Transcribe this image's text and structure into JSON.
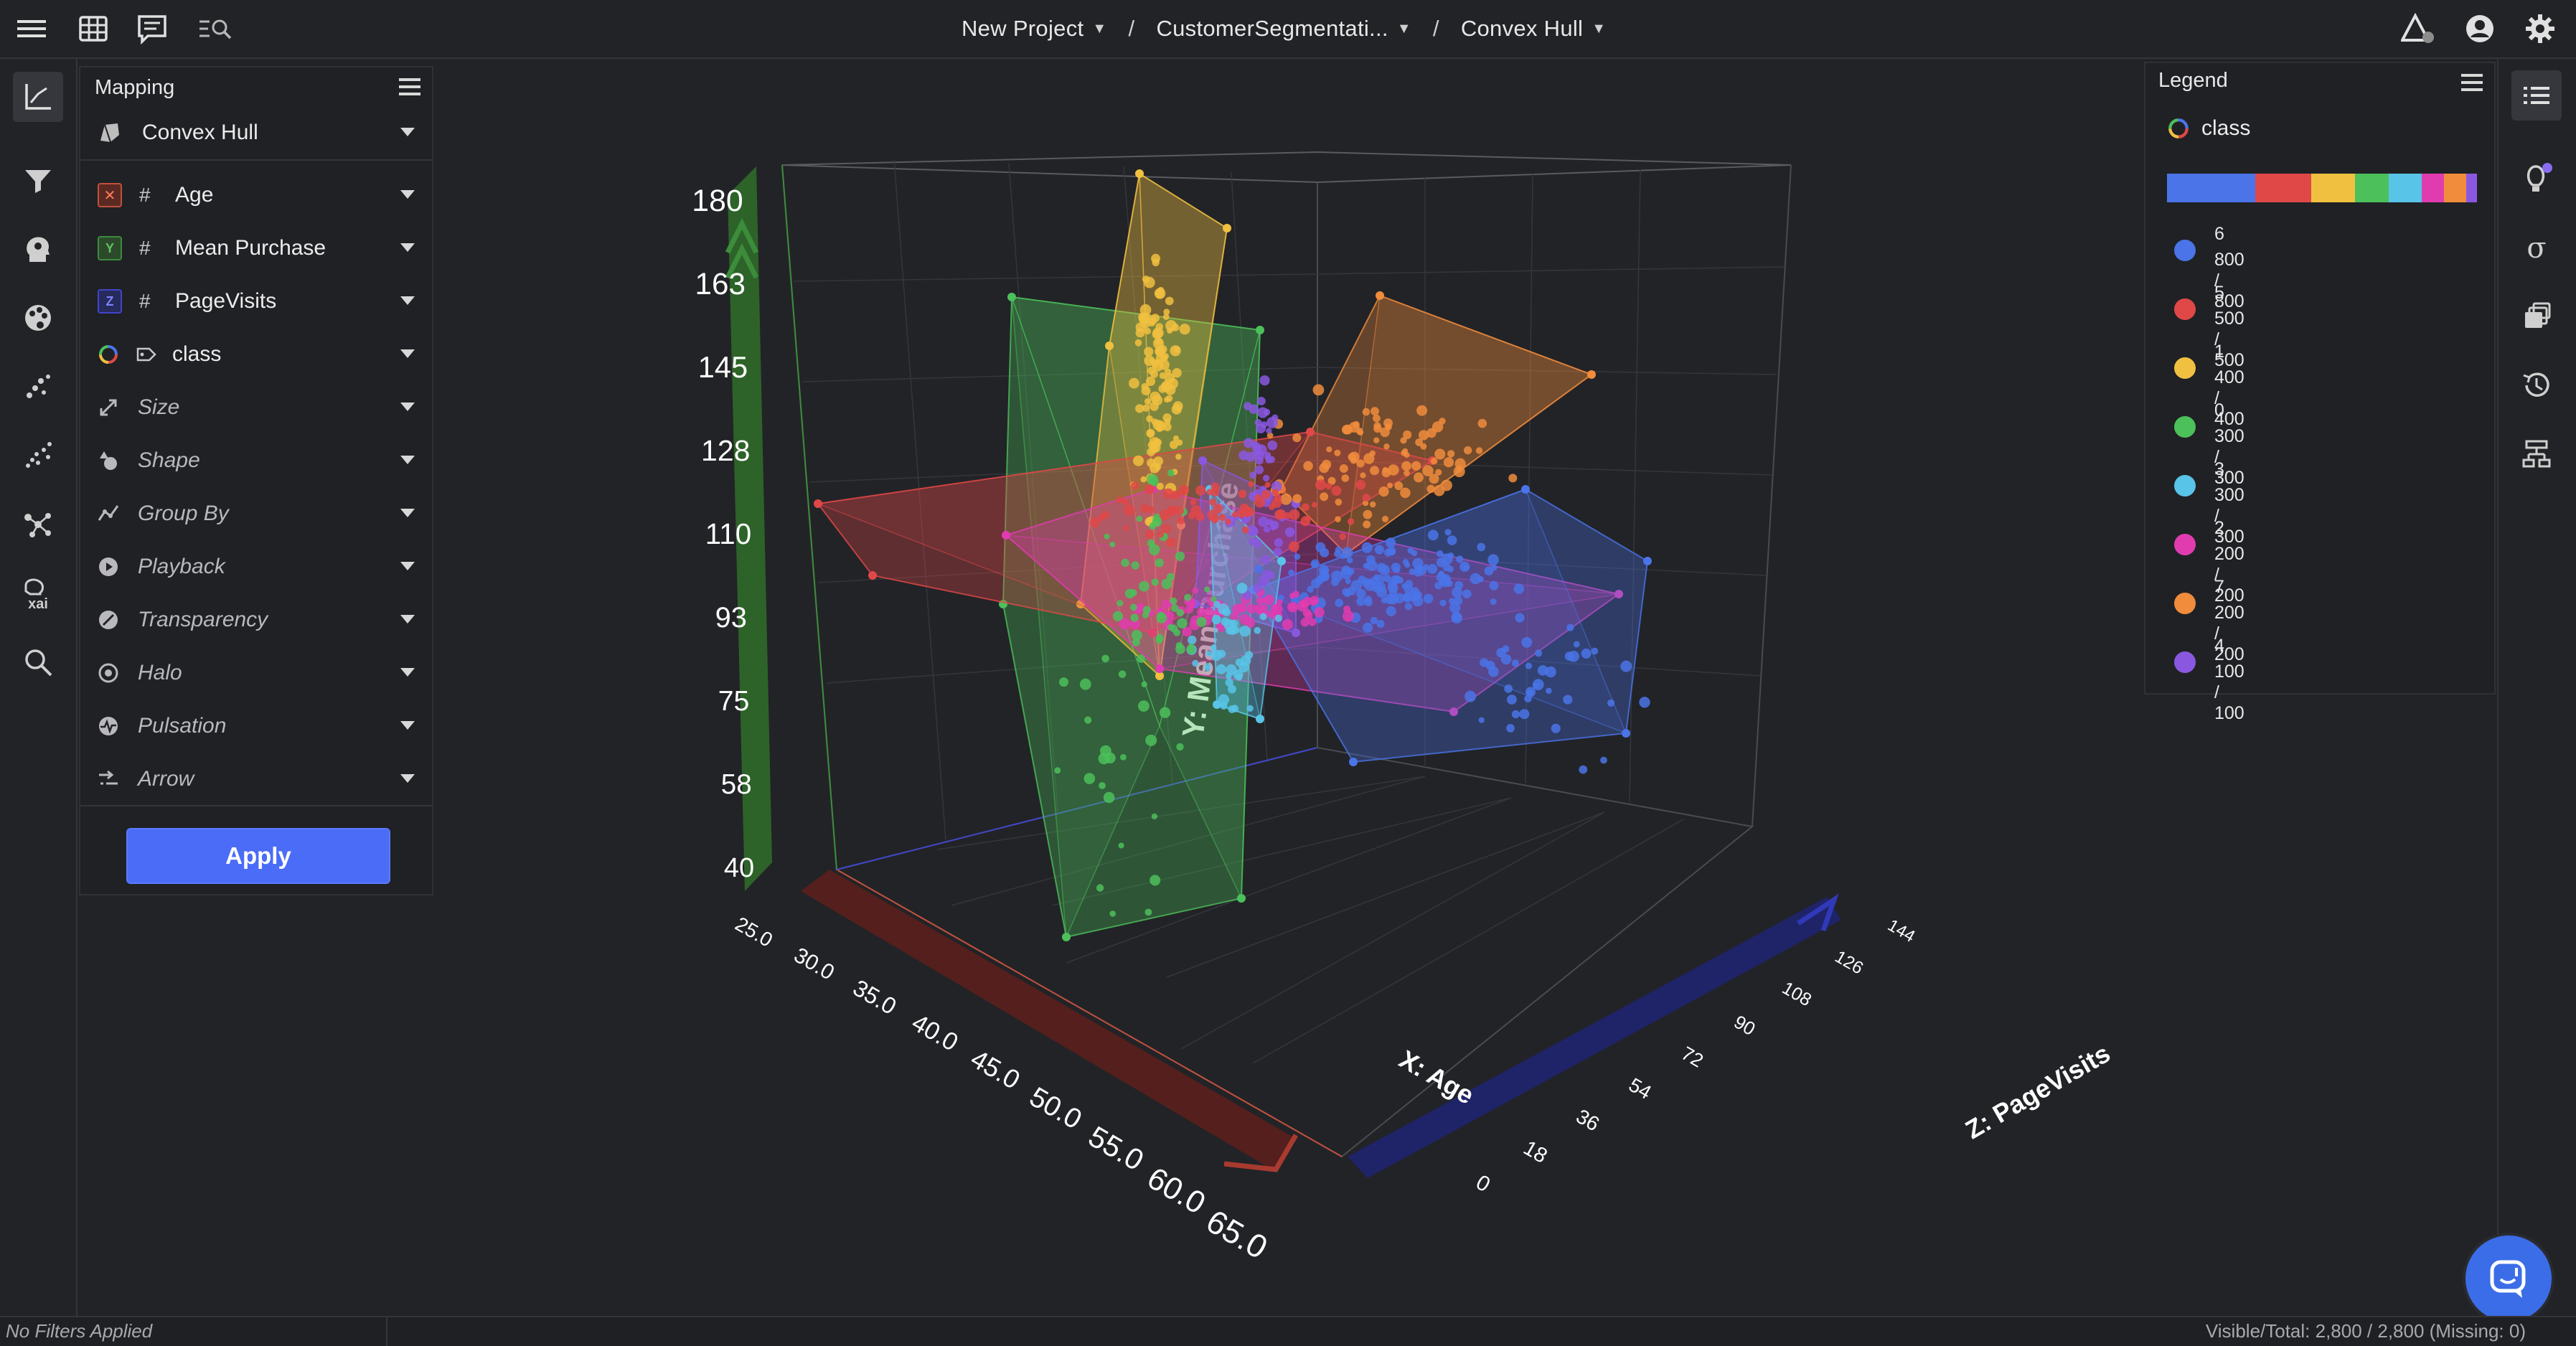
{
  "header": {
    "breadcrumb": [
      {
        "label": "New Project"
      },
      {
        "label": "CustomerSegmentati..."
      },
      {
        "label": "Convex Hull"
      }
    ],
    "separator": "/"
  },
  "mapping": {
    "title": "Mapping",
    "plot_type": "Convex Hull",
    "axes": [
      {
        "axis": "X",
        "field": "Age",
        "type_symbol": "#",
        "color": "#c0503c"
      },
      {
        "axis": "Y",
        "field": "Mean Purchase",
        "type_symbol": "#",
        "color": "#3c8c3c"
      },
      {
        "axis": "Z",
        "field": "PageVisits",
        "type_symbol": "#",
        "color": "#4046c8"
      }
    ],
    "color_field": "class",
    "options": [
      "Size",
      "Shape",
      "Group By",
      "Playback",
      "Transparency",
      "Halo",
      "Pulsation",
      "Arrow"
    ],
    "apply_label": "Apply"
  },
  "legend": {
    "title": "Legend",
    "field": "class",
    "items": [
      {
        "class": "6",
        "counts": "800 / 800",
        "color": "#4a74e8"
      },
      {
        "class": "5",
        "counts": "500 / 500",
        "color": "#e04848"
      },
      {
        "class": "1",
        "counts": "400 / 400",
        "color": "#f0c040"
      },
      {
        "class": "0",
        "counts": "300 / 300",
        "color": "#4cc05a"
      },
      {
        "class": "3",
        "counts": "300 / 300",
        "color": "#58c4e8"
      },
      {
        "class": "2",
        "counts": "200 / 200",
        "color": "#e03cb0"
      },
      {
        "class": "7",
        "counts": "200 / 200",
        "color": "#f08c3c"
      },
      {
        "class": "4",
        "counts": "100 / 100",
        "color": "#8a58e0"
      }
    ]
  },
  "chart_data": {
    "type": "scatter",
    "projection": "3d",
    "overlay": "convex hull per class",
    "xlabel": "X: Age",
    "ylabel": "Y: Mean Purchase",
    "zlabel": "Z: PageVisits",
    "x_ticks": [
      "25.0",
      "30.0",
      "35.0",
      "40.0",
      "45.0",
      "50.0",
      "55.0",
      "60.0",
      "65.0"
    ],
    "y_ticks": [
      "40",
      "58",
      "75",
      "93",
      "110",
      "128",
      "145",
      "163",
      "180"
    ],
    "z_ticks": [
      "0",
      "18",
      "36",
      "54",
      "72",
      "90",
      "108",
      "126",
      "144"
    ],
    "xlim": [
      25,
      65
    ],
    "ylim": [
      40,
      180
    ],
    "zlim": [
      0,
      144
    ],
    "series": [
      {
        "name": "6",
        "color": "#4a74e8",
        "count": 800
      },
      {
        "name": "5",
        "color": "#e04848",
        "count": 500
      },
      {
        "name": "1",
        "color": "#f0c040",
        "count": 400
      },
      {
        "name": "0",
        "color": "#4cc05a",
        "count": 300
      },
      {
        "name": "3",
        "color": "#58c4e8",
        "count": 300
      },
      {
        "name": "2",
        "color": "#e03cb0",
        "count": 200
      },
      {
        "name": "7",
        "color": "#f08c3c",
        "count": 200
      },
      {
        "name": "4",
        "color": "#8a58e0",
        "count": 100
      }
    ]
  },
  "status": {
    "filters": "No Filters Applied",
    "visible_total": "Visible/Total: 2,800 / 2,800 (Missing: 0)"
  }
}
